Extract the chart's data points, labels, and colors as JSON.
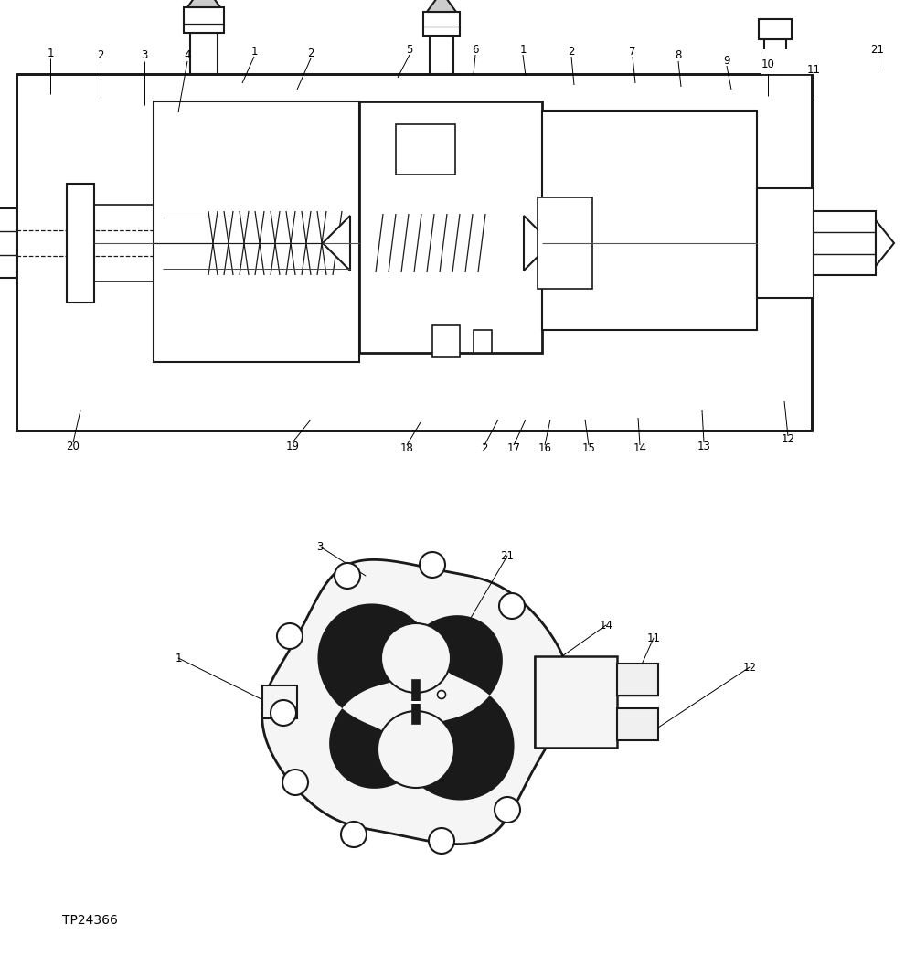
{
  "bg_color": "#ffffff",
  "line_color": "#1a1a1a",
  "footer_text": "TP24366",
  "fig_w": 9.9,
  "fig_h": 10.46,
  "dpi": 100
}
